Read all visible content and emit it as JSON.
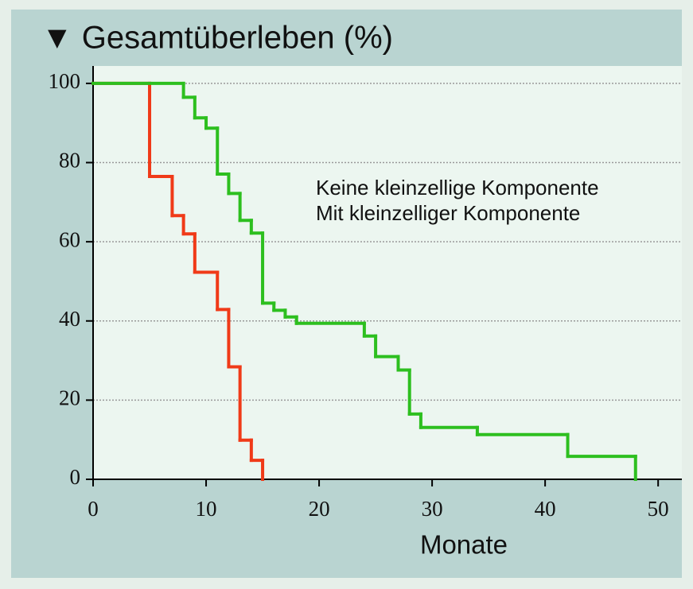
{
  "chart_data": {
    "type": "step",
    "title": "▼ Gesamtüberleben (%)",
    "x_label": "Monate",
    "xlim": [
      0,
      52.1
    ],
    "ylim": [
      0,
      104.4
    ],
    "xticks": [
      0,
      10,
      20,
      30,
      40,
      50
    ],
    "yticks": [
      0,
      20,
      40,
      60,
      80,
      100
    ],
    "grid": true,
    "legend": "upper right",
    "series": [
      {
        "name": "Keine kleinzellige Komponente",
        "color": "#2dbf1f",
        "x": [
          0,
          8,
          9,
          10,
          11,
          12,
          13,
          14,
          15,
          16,
          17,
          18,
          24,
          25,
          27,
          28,
          29,
          34,
          42,
          48
        ],
        "values": [
          100,
          96.5,
          91.3,
          88.7,
          77.1,
          72.2,
          65.4,
          62.2,
          44.5,
          42.7,
          41,
          39.4,
          36.2,
          31,
          27.6,
          16.5,
          13.1,
          11.3,
          5.8,
          0
        ]
      },
      {
        "name": "Mit kleinzelliger Komponente",
        "color": "#f03a18",
        "x": [
          0,
          5,
          7,
          8,
          9,
          11,
          12,
          13,
          14,
          15
        ],
        "values": [
          100,
          76.5,
          66.6,
          62,
          52.3,
          42.9,
          28.4,
          9.9,
          4.8,
          0
        ]
      }
    ]
  }
}
